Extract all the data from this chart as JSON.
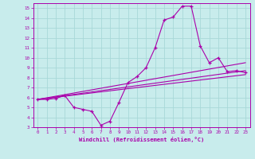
{
  "xlabel": "Windchill (Refroidissement éolien,°C)",
  "background_color": "#c8ecec",
  "grid_color": "#a8d8d8",
  "line_color": "#aa00aa",
  "xlim": [
    -0.5,
    23.5
  ],
  "ylim": [
    3,
    15.5
  ],
  "xticks": [
    0,
    1,
    2,
    3,
    4,
    5,
    6,
    7,
    8,
    9,
    10,
    11,
    12,
    13,
    14,
    15,
    16,
    17,
    18,
    19,
    20,
    21,
    22,
    23
  ],
  "yticks": [
    3,
    4,
    5,
    6,
    7,
    8,
    9,
    10,
    11,
    12,
    13,
    14,
    15
  ],
  "line1_x": [
    0,
    1,
    2,
    3,
    4,
    5,
    6,
    7,
    8,
    9,
    10,
    11,
    12,
    13,
    14,
    15,
    16,
    17,
    18,
    19,
    20,
    21,
    22,
    23
  ],
  "line1_y": [
    5.8,
    5.8,
    5.9,
    6.2,
    5.0,
    4.8,
    4.6,
    3.2,
    3.6,
    5.5,
    7.5,
    8.1,
    9.0,
    11.0,
    13.8,
    14.1,
    15.2,
    15.2,
    11.2,
    9.5,
    10.0,
    8.6,
    8.7,
    8.5
  ],
  "line2_x": [
    0,
    23
  ],
  "line2_y": [
    5.8,
    8.7
  ],
  "line3_x": [
    0,
    23
  ],
  "line3_y": [
    5.8,
    8.3
  ],
  "line4_x": [
    0,
    23
  ],
  "line4_y": [
    5.8,
    9.5
  ]
}
